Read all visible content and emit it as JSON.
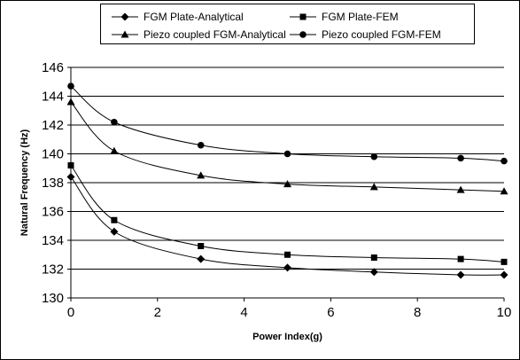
{
  "chart_data": {
    "type": "line",
    "xlabel": "Power Index(g)",
    "ylabel": "Natural Frequency (Hz)",
    "xlim": [
      0,
      10
    ],
    "ylim": [
      130,
      146
    ],
    "xticks": [
      0,
      2,
      4,
      6,
      8,
      10
    ],
    "yticks": [
      130,
      132,
      134,
      136,
      138,
      140,
      142,
      144,
      146
    ],
    "grid": "horizontal",
    "legend_position": "top",
    "series": [
      {
        "name": "FGM Plate-Analytical",
        "marker": "diamond",
        "x": [
          0,
          1,
          3,
          5,
          7,
          9,
          10
        ],
        "values": [
          138.4,
          134.6,
          132.7,
          132.1,
          131.8,
          131.6,
          131.6
        ]
      },
      {
        "name": "FGM Plate-FEM",
        "marker": "square",
        "x": [
          0,
          1,
          3,
          5,
          7,
          9,
          10
        ],
        "values": [
          139.2,
          135.4,
          133.6,
          133.0,
          132.8,
          132.7,
          132.5
        ]
      },
      {
        "name": "Piezo coupled FGM-Analytical",
        "marker": "triangle",
        "x": [
          0,
          1,
          3,
          5,
          7,
          9,
          10
        ],
        "values": [
          143.6,
          140.2,
          138.5,
          137.9,
          137.7,
          137.5,
          137.4
        ]
      },
      {
        "name": "Piezo coupled FGM-FEM",
        "marker": "circle",
        "x": [
          0,
          1,
          3,
          5,
          7,
          9,
          10
        ],
        "values": [
          144.7,
          142.2,
          140.6,
          140.0,
          139.8,
          139.7,
          139.5
        ]
      }
    ]
  }
}
